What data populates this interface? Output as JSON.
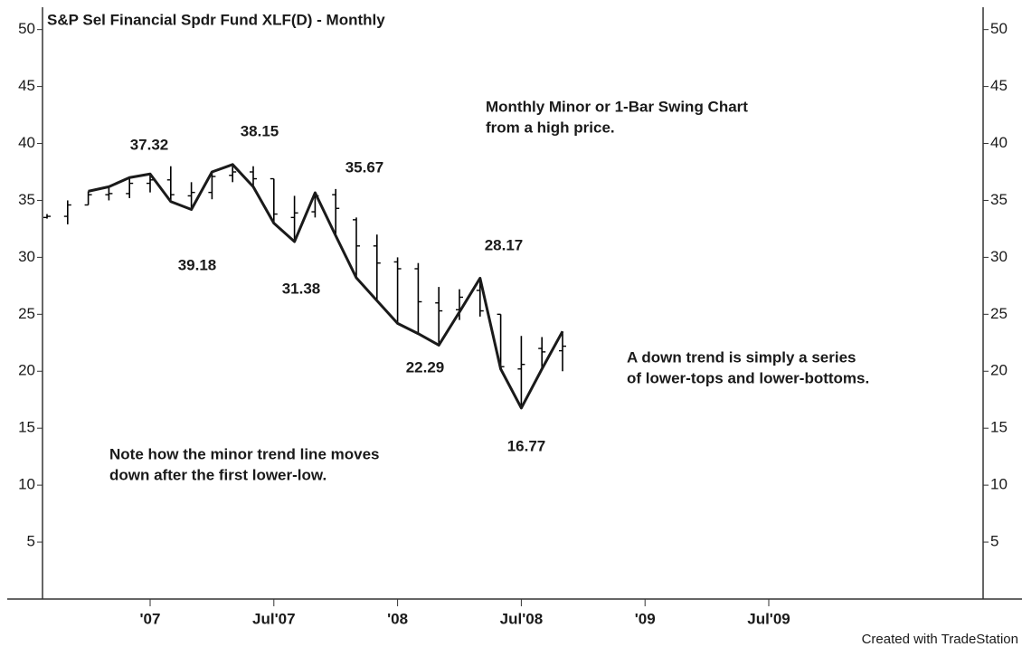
{
  "chart_data": {
    "type": "ohlc",
    "title": "S&P Sel Financial Spdr Fund XLF(D) - Monthly",
    "x": [
      "2006-08",
      "2006-09",
      "2006-10",
      "2006-11",
      "2006-12",
      "2007-01",
      "2007-02",
      "2007-03",
      "2007-04",
      "2007-05",
      "2007-06",
      "2007-07",
      "2007-08",
      "2007-09",
      "2007-10",
      "2007-11",
      "2007-12",
      "2008-01",
      "2008-02",
      "2008-03",
      "2008-04",
      "2008-05",
      "2008-06",
      "2008-07",
      "2008-08",
      "2008-09"
    ],
    "open": [
      33.5,
      33.6,
      34.6,
      35.5,
      35.6,
      36.5,
      36.8,
      35.4,
      35.7,
      37.2,
      37.5,
      36.9,
      33.5,
      34.0,
      35.5,
      33.3,
      31.0,
      29.6,
      29.0,
      26.0,
      25.4,
      27.1,
      25.0,
      20.2,
      22.0,
      21.8
    ],
    "high": [
      33.8,
      35.0,
      35.8,
      36.2,
      37.0,
      37.32,
      38.0,
      36.6,
      37.5,
      38.15,
      38.0,
      36.9,
      35.4,
      35.67,
      36.0,
      33.5,
      32.0,
      30.0,
      29.5,
      27.4,
      27.2,
      28.17,
      25.0,
      23.1,
      23.0,
      23.5
    ],
    "low": [
      33.4,
      32.9,
      34.6,
      35.0,
      35.2,
      35.7,
      34.9,
      34.2,
      35.1,
      36.6,
      36.2,
      33.0,
      31.38,
      33.5,
      31.9,
      28.2,
      26.2,
      24.2,
      23.3,
      22.29,
      24.5,
      24.8,
      20.2,
      16.77,
      20.2,
      20.0
    ],
    "close": [
      33.6,
      34.6,
      35.5,
      35.6,
      36.5,
      36.8,
      35.5,
      35.7,
      37.1,
      37.5,
      36.9,
      33.8,
      33.9,
      35.4,
      34.3,
      31.0,
      29.5,
      29.0,
      26.1,
      25.3,
      26.5,
      25.3,
      20.4,
      20.6,
      21.7,
      22.2
    ],
    "color": "#000000",
    "swing": {
      "color": "#1a1a1a",
      "values": [
        null,
        null,
        35.8,
        36.2,
        37.0,
        37.32,
        34.9,
        34.2,
        37.5,
        38.15,
        36.2,
        33.0,
        31.38,
        35.67,
        31.9,
        28.2,
        26.2,
        24.2,
        23.3,
        22.29,
        25.2,
        28.17,
        20.2,
        16.77,
        20.2,
        23.5
      ]
    },
    "xlim": [
      "2006-08",
      "2010-05"
    ],
    "xticks": [
      {
        "value": "2007-01",
        "label": "'07"
      },
      {
        "value": "2007-07",
        "label": "Jul'07"
      },
      {
        "value": "2008-01",
        "label": "'08"
      },
      {
        "value": "2008-07",
        "label": "Jul'08"
      },
      {
        "value": "2009-01",
        "label": "'09"
      },
      {
        "value": "2009-07",
        "label": "Jul'09"
      }
    ],
    "ylim": [
      0,
      51.8
    ],
    "yticks": [
      5,
      10,
      15,
      20,
      25,
      30,
      35,
      40,
      45,
      50
    ],
    "annotations": [
      {
        "text": "37.32"
      },
      {
        "text": "38.15"
      },
      {
        "text": "39.18"
      },
      {
        "text": "31.38"
      },
      {
        "text": "35.67"
      },
      {
        "text": "28.17"
      },
      {
        "text": "22.29"
      },
      {
        "text": "16.77"
      },
      {
        "text": "Monthly Minor or 1-Bar Swing Chart"
      },
      {
        "text": "from a high price."
      },
      {
        "text": "A down trend is simply a series"
      },
      {
        "text": "of lower-tops and lower-bottoms."
      },
      {
        "text": "Note how the minor trend line moves"
      },
      {
        "text": "down after the first lower-low."
      }
    ],
    "footer": "Created with TradeStation"
  }
}
